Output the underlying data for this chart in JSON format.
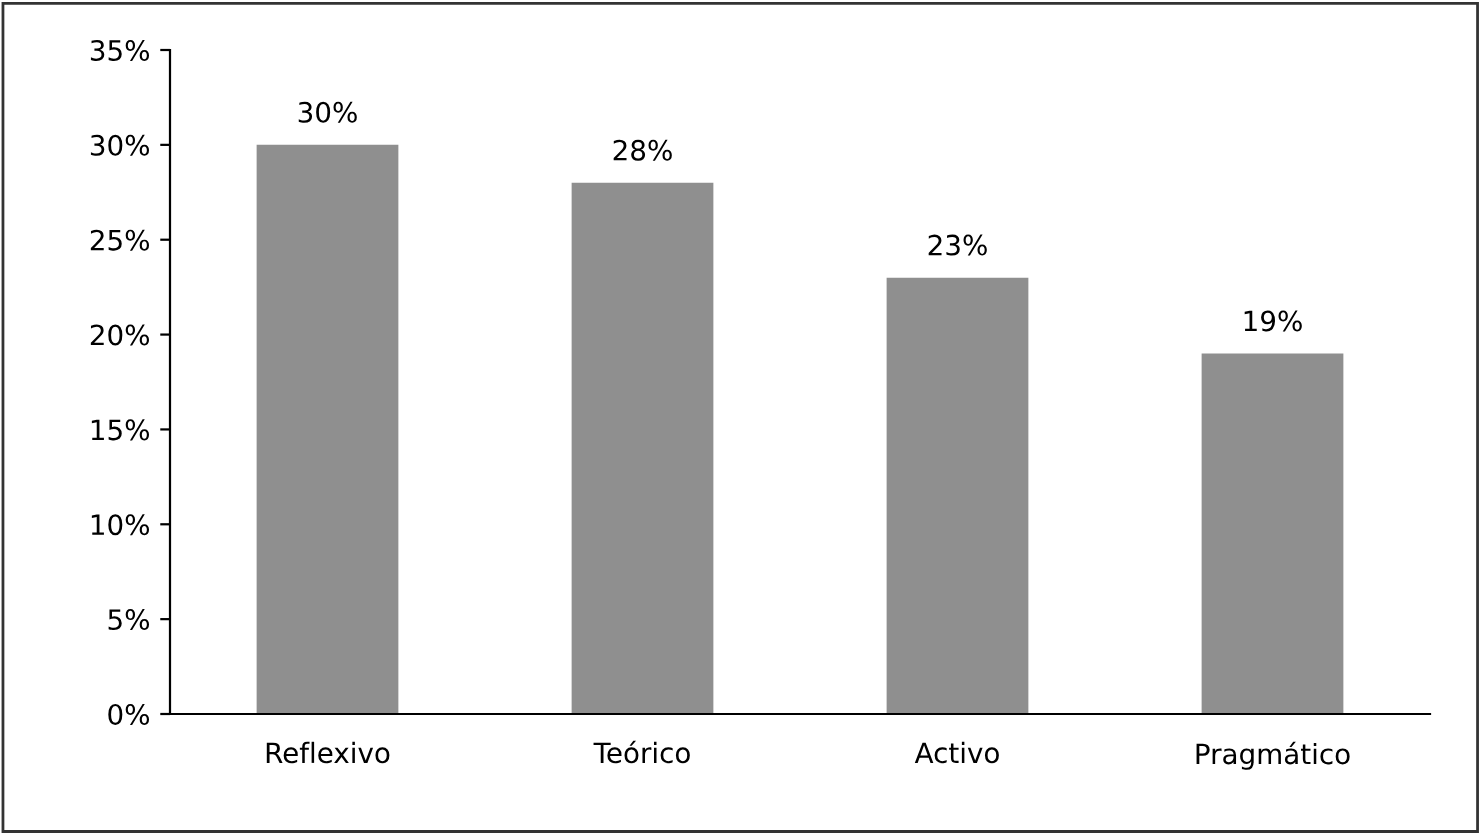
{
  "chart_data": {
    "type": "bar",
    "categories": [
      "Reflexivo",
      "Teórico",
      "Activo",
      "Pragmático"
    ],
    "values": [
      30,
      28,
      23,
      19
    ],
    "value_labels": [
      "30%",
      "28%",
      "23%",
      "19%"
    ],
    "color": "#8f8f8f",
    "ylim": [
      0,
      35
    ],
    "yticks": [
      {
        "value": 0,
        "label": "0%"
      },
      {
        "value": 5,
        "label": "5%"
      },
      {
        "value": 10,
        "label": "10%"
      },
      {
        "value": 15,
        "label": "15%"
      },
      {
        "value": 20,
        "label": "20%"
      },
      {
        "value": 25,
        "label": "25%"
      },
      {
        "value": 30,
        "label": "30%"
      },
      {
        "value": 35,
        "label": "35%"
      }
    ],
    "grid": false
  }
}
